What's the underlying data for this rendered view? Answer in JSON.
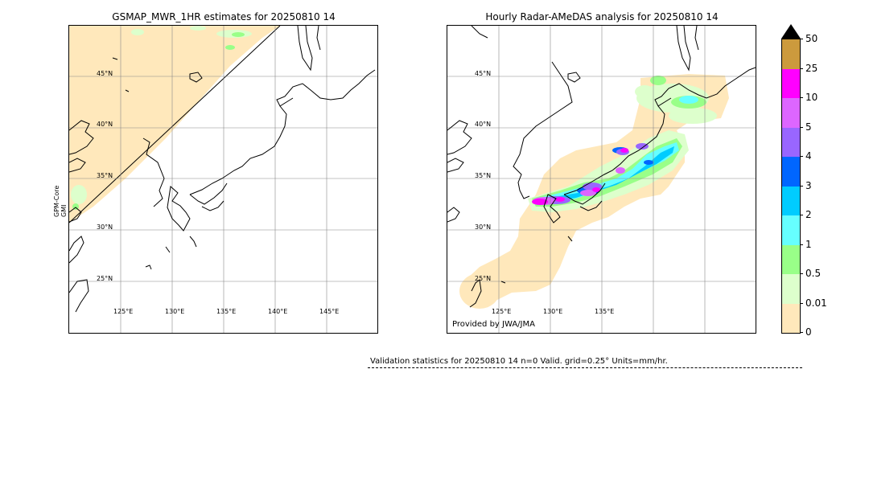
{
  "left_panel": {
    "title": "GSMAP_MWR_1HR estimates for 20250810 14",
    "sensor_line1": "GPM-Core",
    "sensor_line2": "GMI",
    "lat_labels": [
      "45°N",
      "40°N",
      "35°N",
      "30°N",
      "25°N"
    ],
    "lon_labels": [
      "125°E",
      "130°E",
      "135°E",
      "140°E",
      "145°E"
    ]
  },
  "right_panel": {
    "title": "Hourly Radar-AMeDAS analysis for 20250810 14",
    "lat_labels": [
      "45°N",
      "40°N",
      "35°N",
      "30°N",
      "25°N"
    ],
    "lon_labels": [
      "125°E",
      "130°E",
      "135°E"
    ],
    "credit": "Provided by JWA/JMA"
  },
  "colorbar": {
    "units": "mm/hr",
    "levels": [
      {
        "label": "50",
        "color": "#000000"
      },
      {
        "label": "25",
        "color": "#cc9a3d"
      },
      {
        "label": "10",
        "color": "#ff00ff"
      },
      {
        "label": "5",
        "color": "#dd66ff"
      },
      {
        "label": "4",
        "color": "#9966ff"
      },
      {
        "label": "3",
        "color": "#0066ff"
      },
      {
        "label": "2",
        "color": "#00ccff"
      },
      {
        "label": "1",
        "color": "#66ffff"
      },
      {
        "label": "0.5",
        "color": "#99ff88"
      },
      {
        "label": "0.01",
        "color": "#ddffcc"
      },
      {
        "label": "0",
        "color": "#ffe8bb"
      }
    ]
  },
  "stats_text": "Validation statistics for 20250810 14  n=0 Valid. grid=0.25° Units=mm/hr."
}
